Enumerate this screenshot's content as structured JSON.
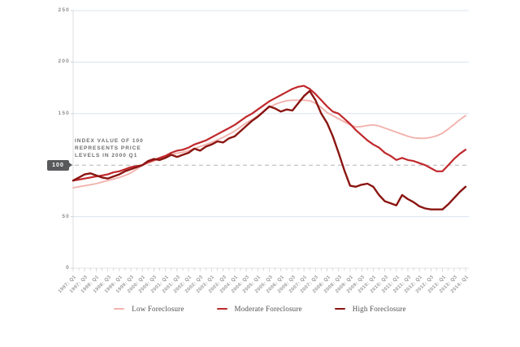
{
  "colors": {
    "gridline": "#d8e3f0",
    "baseline": "#e4e4e4",
    "axis_line": "#dedede",
    "tick": "#cfcfcf",
    "dashed_reference": "#b3b3b3",
    "axis_text": "#8f8f8f",
    "annotation_text": "#6e6e6e",
    "badge_bg": "#58595b",
    "badge_text": "#ffffff",
    "legend_text": "#4f4f4f"
  },
  "chart_data": {
    "type": "line",
    "title": "",
    "xlabel": "",
    "ylabel": "",
    "ylim": [
      0,
      250
    ],
    "y_ticks": [
      0,
      50,
      100,
      150,
      200,
      250
    ],
    "grid": "horizontal gridlines at 50,150,200,250 (light blue), dashed reference at 100",
    "legend_position": "bottom-center",
    "x_step": "quarterly",
    "x_start": "1997 Q1",
    "x_end": "2014 Q1",
    "x_tick_labels": [
      "1997: Q1",
      "1997: Q3",
      "1998: Q1",
      "1998: Q3",
      "1999: Q1",
      "1999: Q3",
      "2000: Q1",
      "2000: Q3",
      "2001: Q1",
      "2001: Q3",
      "2002: Q1",
      "2002: Q3",
      "2003: Q1",
      "2003: Q3",
      "2004: Q1",
      "2004: Q3",
      "2005: Q1",
      "2005: Q3",
      "2006: Q1",
      "2006: Q3",
      "2007: Q1",
      "2007: Q3",
      "2008: Q1",
      "2008: Q3",
      "2009: Q1",
      "2009: Q3",
      "2010: Q1",
      "2010: Q3",
      "2011: Q1",
      "2011: Q3",
      "2012: Q1",
      "2012: Q3",
      "2013: Q1",
      "2013: Q3",
      "2014: Q1"
    ],
    "reference_line": {
      "value": 100,
      "label": "100",
      "style": "dashed"
    },
    "annotation": [
      "INDEX VALUE OF 100",
      "REPRESENTS PRICE",
      "LEVELS IN 2000 Q1"
    ],
    "series": [
      {
        "name": "Low Foreclosure",
        "color": "#f2b3ae",
        "values": [
          78,
          79,
          80,
          81,
          82,
          83.5,
          85,
          86.5,
          88,
          90,
          92.5,
          96,
          100,
          102,
          104,
          106,
          108,
          110,
          111.5,
          112.5,
          114,
          116,
          118,
          120,
          122,
          124.5,
          127,
          130,
          133,
          137,
          141,
          144,
          148,
          152,
          156,
          159,
          161,
          162.5,
          163,
          163,
          163,
          162.5,
          160,
          156,
          151,
          148,
          145,
          142,
          139,
          137,
          137.5,
          138.5,
          139,
          138,
          136,
          134,
          132,
          130,
          128,
          126.5,
          126,
          126,
          127,
          128.5,
          131,
          135,
          139.5,
          144,
          148
        ]
      },
      {
        "name": "Moderate Foreclosure",
        "color": "#c0282c",
        "values": [
          85,
          86,
          87,
          88,
          89,
          90,
          91,
          93,
          94,
          96,
          98,
          99,
          100,
          103,
          105,
          107,
          109,
          112,
          114,
          115,
          117,
          120,
          122,
          124,
          127,
          130,
          133,
          136,
          139,
          143,
          147,
          150,
          154,
          158,
          162,
          165,
          168,
          171,
          174,
          176,
          177,
          174,
          169,
          163,
          157,
          152,
          150,
          145,
          140,
          134,
          129,
          124,
          120,
          117,
          112,
          109,
          105,
          107,
          105,
          104,
          102,
          100,
          97,
          94,
          94,
          100,
          106,
          111,
          115
        ]
      },
      {
        "name": "High Foreclosure",
        "color": "#8a1511",
        "values": [
          85,
          88,
          91,
          92,
          90,
          88,
          87,
          89,
          91,
          94,
          96,
          98,
          100,
          104,
          106,
          105,
          107,
          110,
          108,
          110,
          112,
          116,
          114,
          118,
          120,
          123,
          122,
          126,
          128,
          133,
          138,
          143,
          147,
          152,
          157,
          155,
          152,
          154,
          153,
          160,
          167,
          172,
          163,
          150,
          141,
          128,
          112,
          95,
          80,
          79,
          81,
          82,
          79,
          71,
          65,
          63,
          61,
          71,
          67,
          64,
          60,
          58,
          57,
          57,
          57,
          62,
          68,
          74,
          79
        ]
      }
    ]
  }
}
